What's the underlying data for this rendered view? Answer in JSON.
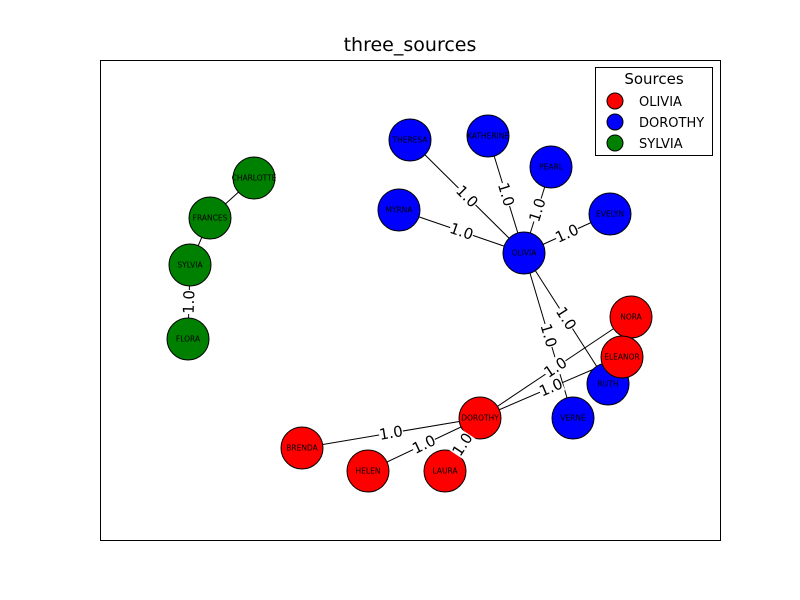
{
  "title": "three_sources",
  "legend": {
    "title": "Sources",
    "entries": [
      {
        "label": "OLIVIA",
        "color": "#ff0000"
      },
      {
        "label": "DOROTHY",
        "color": "#0000ff"
      },
      {
        "label": "SYLVIA",
        "color": "#008000"
      }
    ]
  },
  "nodes": [
    {
      "id": "CHARLOTTE",
      "source": "SYLVIA"
    },
    {
      "id": "FRANCES",
      "source": "SYLVIA"
    },
    {
      "id": "SYLVIA",
      "source": "SYLVIA"
    },
    {
      "id": "FLORA",
      "source": "SYLVIA"
    },
    {
      "id": "THERESA",
      "source": "DOROTHY"
    },
    {
      "id": "KATHERINE",
      "source": "DOROTHY"
    },
    {
      "id": "PEARL",
      "source": "DOROTHY"
    },
    {
      "id": "EVELYN",
      "source": "DOROTHY"
    },
    {
      "id": "MYRNA",
      "source": "DOROTHY"
    },
    {
      "id": "OLIVIA",
      "source": "DOROTHY"
    },
    {
      "id": "RUTH",
      "source": "DOROTHY"
    },
    {
      "id": "VERNE",
      "source": "DOROTHY"
    },
    {
      "id": "NORA",
      "source": "OLIVIA"
    },
    {
      "id": "ELEANOR",
      "source": "OLIVIA"
    },
    {
      "id": "DOROTHY",
      "source": "OLIVIA"
    },
    {
      "id": "BRENDA",
      "source": "OLIVIA"
    },
    {
      "id": "HELEN",
      "source": "OLIVIA"
    },
    {
      "id": "LAURA",
      "source": "OLIVIA"
    }
  ],
  "edges": [
    {
      "from": "CHARLOTTE",
      "to": "FRANCES",
      "label": ""
    },
    {
      "from": "FRANCES",
      "to": "SYLVIA",
      "label": ""
    },
    {
      "from": "SYLVIA",
      "to": "FLORA",
      "label": "1.0"
    },
    {
      "from": "THERESA",
      "to": "OLIVIA",
      "label": "1.0"
    },
    {
      "from": "KATHERINE",
      "to": "OLIVIA",
      "label": "1.0"
    },
    {
      "from": "PEARL",
      "to": "OLIVIA",
      "label": "1.0"
    },
    {
      "from": "EVELYN",
      "to": "OLIVIA",
      "label": "1.0"
    },
    {
      "from": "MYRNA",
      "to": "OLIVIA",
      "label": "1.0"
    },
    {
      "from": "OLIVIA",
      "to": "RUTH",
      "label": "1.0"
    },
    {
      "from": "OLIVIA",
      "to": "VERNE",
      "label": "1.0"
    },
    {
      "from": "DOROTHY",
      "to": "NORA",
      "label": "1.0"
    },
    {
      "from": "DOROTHY",
      "to": "ELEANOR",
      "label": "1.0"
    },
    {
      "from": "DOROTHY",
      "to": "BRENDA",
      "label": "1.0"
    },
    {
      "from": "DOROTHY",
      "to": "HELEN",
      "label": "1.0"
    },
    {
      "from": "DOROTHY",
      "to": "LAURA",
      "label": "1.0"
    }
  ]
}
